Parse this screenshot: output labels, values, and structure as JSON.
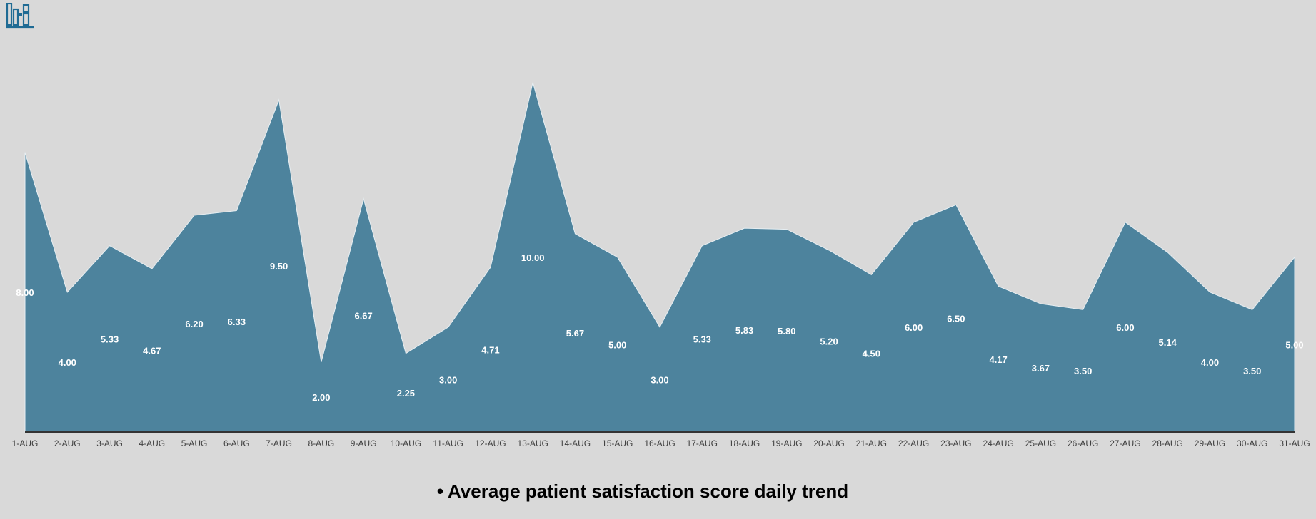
{
  "colors": {
    "area": "#4d839d",
    "background": "#d9d9d9",
    "axis": "#333333",
    "label": "#ffffff",
    "logo": "#1f6b94"
  },
  "logo": {
    "icon": "bar-chart-books-icon"
  },
  "chart_data": {
    "type": "area",
    "title": "Average patient satisfaction score daily trend",
    "categories": [
      "1-AUG",
      "2-AUG",
      "3-AUG",
      "4-AUG",
      "5-AUG",
      "6-AUG",
      "7-AUG",
      "8-AUG",
      "9-AUG",
      "10-AUG",
      "11-AUG",
      "12-AUG",
      "13-AUG",
      "14-AUG",
      "15-AUG",
      "16-AUG",
      "17-AUG",
      "18-AUG",
      "19-AUG",
      "20-AUG",
      "21-AUG",
      "22-AUG",
      "23-AUG",
      "24-AUG",
      "25-AUG",
      "26-AUG",
      "27-AUG",
      "28-AUG",
      "29-AUG",
      "30-AUG",
      "31-AUG"
    ],
    "series": [
      {
        "values": [
          8.0,
          4.0,
          5.33,
          4.67,
          6.2,
          6.33,
          9.5,
          2.0,
          6.67,
          2.25,
          3.0,
          4.71,
          10.0,
          5.67,
          5.0,
          3.0,
          5.33,
          5.83,
          5.8,
          5.2,
          4.5,
          6.0,
          6.5,
          4.17,
          3.67,
          3.5,
          6.0,
          5.14,
          4.0,
          3.5,
          5.0
        ]
      }
    ],
    "value_labels": [
      "8.00",
      "4.00",
      "5.33",
      "4.67",
      "6.20",
      "6.33",
      "9.50",
      "2.00",
      "6.67",
      "2.25",
      "3.00",
      "4.71",
      "10.00",
      "5.67",
      "5.00",
      "3.00",
      "5.33",
      "5.83",
      "5.80",
      "5.20",
      "4.50",
      "6.00",
      "6.50",
      "4.17",
      "3.67",
      "3.50",
      "6.00",
      "5.14",
      "4.00",
      "3.50",
      "5.00"
    ],
    "ylim": [
      0,
      10.4
    ],
    "grid": false,
    "legend": "none"
  }
}
